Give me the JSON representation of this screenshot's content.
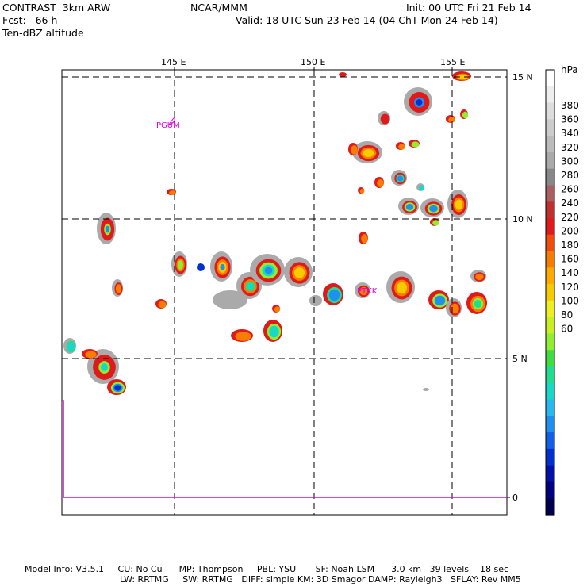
{
  "header": {
    "model": "CONTRAST  3km ARW",
    "forecast": "Fcst:   66 h",
    "field": "Ten-dBZ altitude",
    "org": "NCAR/MMM",
    "init": "Init: 00 UTC Fri 21 Feb 14",
    "valid": "Valid: 18 UTC Sun 23 Feb 14 (04 ChT Mon 24 Feb 14)"
  },
  "map": {
    "lon_labels": [
      "145 E",
      "150 E",
      "155 E"
    ],
    "lat_labels": [
      "15 N",
      "10 N",
      "5 N",
      "0"
    ],
    "station_labels": [
      "PGUM",
      "PTKK"
    ],
    "grid_style": "dashed",
    "colors": {
      "station": "#e000e0",
      "boundary": "#e000e0",
      "grid": "#000000"
    }
  },
  "colorbar": {
    "unit": "hPa",
    "tick_labels": [
      "380",
      "360",
      "340",
      "320",
      "300",
      "280",
      "260",
      "240",
      "220",
      "200",
      "180",
      "160",
      "140",
      "120",
      "100",
      "80",
      "60"
    ],
    "colors": [
      "#ffffff",
      "#eeeeee",
      "#dddddd",
      "#cccccc",
      "#bbbbbb",
      "#aaaaaa",
      "#888888",
      "#a86060",
      "#c03030",
      "#e01a1a",
      "#f04c0c",
      "#f87c00",
      "#ffaa00",
      "#f6cc00",
      "#eeee22",
      "#c8f020",
      "#90ee30",
      "#40dd40",
      "#20dd90",
      "#18d8c8",
      "#28b8f0",
      "#2090f0",
      "#1060e8",
      "#0030d0",
      "#0010a8",
      "#000080",
      "#000050"
    ]
  },
  "footer": {
    "line1": "Model Info: V3.5.1     CU: No Cu      MP: Thompson     PBL: YSU       SF: Noah LSM      3.0 km   39 levels    18 sec",
    "line2": "LW: RRTMG     SW: RRTMG   DIFF: simple KM: 3D Smagor DAMP: Rayleigh3   SFLAY: Rev MM5"
  }
}
